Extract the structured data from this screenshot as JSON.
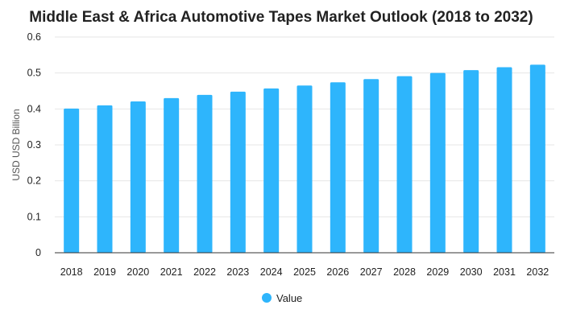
{
  "chart_data": {
    "type": "bar",
    "title": "Middle East & Africa Automotive Tapes Market Outlook (2018 to 2032)",
    "xlabel": "",
    "ylabel": "USD USD Billion",
    "categories": [
      "2018",
      "2019",
      "2020",
      "2021",
      "2022",
      "2023",
      "2024",
      "2025",
      "2026",
      "2027",
      "2028",
      "2029",
      "2030",
      "2031",
      "2032"
    ],
    "series": [
      {
        "name": "Value",
        "values": [
          0.401,
          0.41,
          0.421,
          0.43,
          0.439,
          0.448,
          0.457,
          0.465,
          0.474,
          0.483,
          0.491,
          0.5,
          0.508,
          0.516,
          0.523
        ],
        "color": "#2eb5fc"
      }
    ],
    "ylim": [
      0,
      0.6
    ],
    "yticks": [
      "0",
      "0.1",
      "0.2",
      "0.3",
      "0.4",
      "0.5",
      "0.6"
    ],
    "grid": true,
    "legend_position": "bottom-center"
  }
}
